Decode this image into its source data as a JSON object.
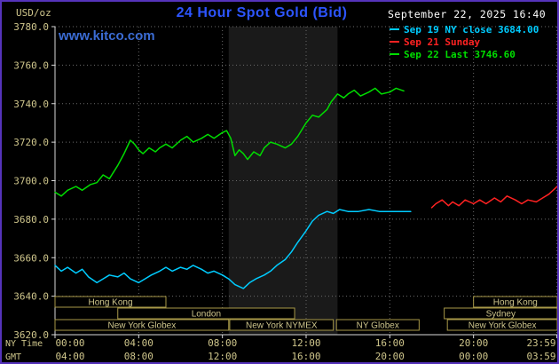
{
  "header": {
    "units_label": "USD/oz",
    "title": "24 Hour Spot Gold (Bid)",
    "datetime": "September 22, 2025 16:40",
    "watermark": "www.kitco.com",
    "legend": [
      {
        "label": "Sep 19 NY close 3684.00",
        "color": "#00ccff"
      },
      {
        "label": "Sep 21 Sunday",
        "color": "#ff2222"
      },
      {
        "label": "Sep 22 Last 3746.60",
        "color": "#00dd00"
      }
    ]
  },
  "colors": {
    "background": "#000000",
    "frame_border": "#5533bb",
    "title": "#2d55ff",
    "watermark": "#3b6cd4",
    "datetime": "#ffffff",
    "axis_text": "#cfc68c",
    "grid": "#6b6b6b",
    "axis_line": "#d9d9d9",
    "band": "#1a1a1a",
    "session_border": "#a89948",
    "session_text": "#cfc68c"
  },
  "chart_data": {
    "type": "line",
    "title": "24 Hour Spot Gold (Bid)",
    "ylabel": "USD/oz",
    "ylim": [
      3620,
      3780
    ],
    "xlim_hours": [
      0,
      24
    ],
    "grid": true,
    "legend_position": "top-right",
    "y_ticks": [
      {
        "v": 3780,
        "label": "3780.0"
      },
      {
        "v": 3760,
        "label": "3760.0"
      },
      {
        "v": 3740,
        "label": "3740.0"
      },
      {
        "v": 3720,
        "label": "3720.0"
      },
      {
        "v": 3700,
        "label": "3700.0"
      },
      {
        "v": 3680,
        "label": "3680.0"
      },
      {
        "v": 3660,
        "label": "3660.0"
      },
      {
        "v": 3640,
        "label": "3640.0"
      },
      {
        "v": 3620,
        "label": "3620.0"
      }
    ],
    "x_axis": {
      "ny_label": "NY Time",
      "gmt_label": "GMT",
      "ticks": [
        {
          "h": 0,
          "ny": "00:00",
          "gmt": "04:00"
        },
        {
          "h": 4,
          "ny": "04:00",
          "gmt": "08:00"
        },
        {
          "h": 8,
          "ny": "08:00",
          "gmt": "12:00"
        },
        {
          "h": 12,
          "ny": "12:00",
          "gmt": "16:00"
        },
        {
          "h": 16,
          "ny": "16:00",
          "gmt": "20:00"
        },
        {
          "h": 20,
          "ny": "20:00",
          "gmt": "00:00"
        },
        {
          "h": 23.983,
          "ny": "23:59",
          "gmt": "03:59"
        }
      ]
    },
    "nymex_band_hours": [
      8.3,
      13.5
    ],
    "sessions": [
      {
        "row": 0,
        "label": "Hong Kong",
        "start": 0,
        "end": 5.3
      },
      {
        "row": 0,
        "label": "Hong Kong",
        "start": 20,
        "end": 24
      },
      {
        "row": 1,
        "label": "London",
        "start": 3,
        "end": 11.45
      },
      {
        "row": 1,
        "label": "Sydney",
        "start": 18.6,
        "end": 24
      },
      {
        "row": 2,
        "label": "New York Globex",
        "start": 0,
        "end": 8.3
      },
      {
        "row": 2,
        "label": "New York NYMEX",
        "start": 8.35,
        "end": 13.3
      },
      {
        "row": 2,
        "label": "NY Globex",
        "start": 13.45,
        "end": 17.4
      },
      {
        "row": 2,
        "label": "New York Globex",
        "start": 18.75,
        "end": 24
      }
    ],
    "series": [
      {
        "id": "sep19",
        "name": "Sep 19 NY close",
        "close": 3684.0,
        "color": "#00ccff",
        "points": [
          [
            0,
            3656
          ],
          [
            0.3,
            3653
          ],
          [
            0.6,
            3655
          ],
          [
            1,
            3652
          ],
          [
            1.3,
            3654
          ],
          [
            1.6,
            3650
          ],
          [
            2,
            3647
          ],
          [
            2.3,
            3649
          ],
          [
            2.6,
            3651
          ],
          [
            3,
            3650
          ],
          [
            3.3,
            3652
          ],
          [
            3.6,
            3649
          ],
          [
            4,
            3647
          ],
          [
            4.3,
            3649
          ],
          [
            4.6,
            3651
          ],
          [
            5,
            3653
          ],
          [
            5.3,
            3655
          ],
          [
            5.6,
            3653
          ],
          [
            6,
            3655
          ],
          [
            6.3,
            3654
          ],
          [
            6.6,
            3656
          ],
          [
            7,
            3654
          ],
          [
            7.3,
            3652
          ],
          [
            7.6,
            3653
          ],
          [
            8,
            3651
          ],
          [
            8.3,
            3649
          ],
          [
            8.6,
            3646
          ],
          [
            9,
            3644
          ],
          [
            9.3,
            3647
          ],
          [
            9.6,
            3649
          ],
          [
            10,
            3651
          ],
          [
            10.3,
            3653
          ],
          [
            10.6,
            3656
          ],
          [
            11,
            3659
          ],
          [
            11.3,
            3663
          ],
          [
            11.6,
            3668
          ],
          [
            12,
            3674
          ],
          [
            12.3,
            3679
          ],
          [
            12.6,
            3682
          ],
          [
            13,
            3684
          ],
          [
            13.3,
            3683
          ],
          [
            13.6,
            3685
          ],
          [
            14,
            3684
          ],
          [
            14.5,
            3684
          ],
          [
            15,
            3685
          ],
          [
            15.5,
            3684
          ],
          [
            16,
            3684
          ],
          [
            16.5,
            3684
          ],
          [
            17,
            3684
          ]
        ]
      },
      {
        "id": "sep21",
        "name": "Sep 21 Sunday",
        "color": "#ff2222",
        "points": [
          [
            18,
            3686
          ],
          [
            18.2,
            3688
          ],
          [
            18.5,
            3690
          ],
          [
            18.8,
            3687
          ],
          [
            19,
            3689
          ],
          [
            19.3,
            3687
          ],
          [
            19.6,
            3690
          ],
          [
            20,
            3688
          ],
          [
            20.3,
            3690
          ],
          [
            20.6,
            3688
          ],
          [
            21,
            3691
          ],
          [
            21.3,
            3689
          ],
          [
            21.6,
            3692
          ],
          [
            22,
            3690
          ],
          [
            22.3,
            3688
          ],
          [
            22.6,
            3690
          ],
          [
            23,
            3689
          ],
          [
            23.3,
            3691
          ],
          [
            23.6,
            3693
          ],
          [
            24,
            3697
          ]
        ]
      },
      {
        "id": "sep22",
        "name": "Sep 22",
        "last": 3746.6,
        "color": "#00dd00",
        "points": [
          [
            0,
            3694
          ],
          [
            0.3,
            3692
          ],
          [
            0.6,
            3695
          ],
          [
            1,
            3697
          ],
          [
            1.3,
            3695
          ],
          [
            1.7,
            3698
          ],
          [
            2,
            3699
          ],
          [
            2.3,
            3703
          ],
          [
            2.6,
            3701
          ],
          [
            3,
            3708
          ],
          [
            3.3,
            3714
          ],
          [
            3.6,
            3721
          ],
          [
            3.8,
            3719
          ],
          [
            4,
            3716
          ],
          [
            4.2,
            3714
          ],
          [
            4.5,
            3717
          ],
          [
            4.8,
            3715
          ],
          [
            5,
            3717
          ],
          [
            5.3,
            3719
          ],
          [
            5.6,
            3717
          ],
          [
            6,
            3721
          ],
          [
            6.3,
            3723
          ],
          [
            6.6,
            3720
          ],
          [
            7,
            3722
          ],
          [
            7.3,
            3724
          ],
          [
            7.6,
            3722
          ],
          [
            8,
            3725
          ],
          [
            8.2,
            3726
          ],
          [
            8.4,
            3722
          ],
          [
            8.6,
            3713
          ],
          [
            8.8,
            3716
          ],
          [
            9,
            3714
          ],
          [
            9.2,
            3711
          ],
          [
            9.5,
            3715
          ],
          [
            9.8,
            3713
          ],
          [
            10,
            3717
          ],
          [
            10.3,
            3720
          ],
          [
            10.6,
            3719
          ],
          [
            11,
            3717
          ],
          [
            11.3,
            3719
          ],
          [
            11.6,
            3723
          ],
          [
            12,
            3730
          ],
          [
            12.3,
            3734
          ],
          [
            12.6,
            3733
          ],
          [
            13,
            3737
          ],
          [
            13.2,
            3741
          ],
          [
            13.5,
            3745
          ],
          [
            13.8,
            3743
          ],
          [
            14,
            3745
          ],
          [
            14.3,
            3747
          ],
          [
            14.6,
            3744
          ],
          [
            15,
            3746
          ],
          [
            15.3,
            3748
          ],
          [
            15.6,
            3745
          ],
          [
            16,
            3746
          ],
          [
            16.3,
            3748
          ],
          [
            16.67,
            3746.6
          ]
        ]
      }
    ]
  }
}
